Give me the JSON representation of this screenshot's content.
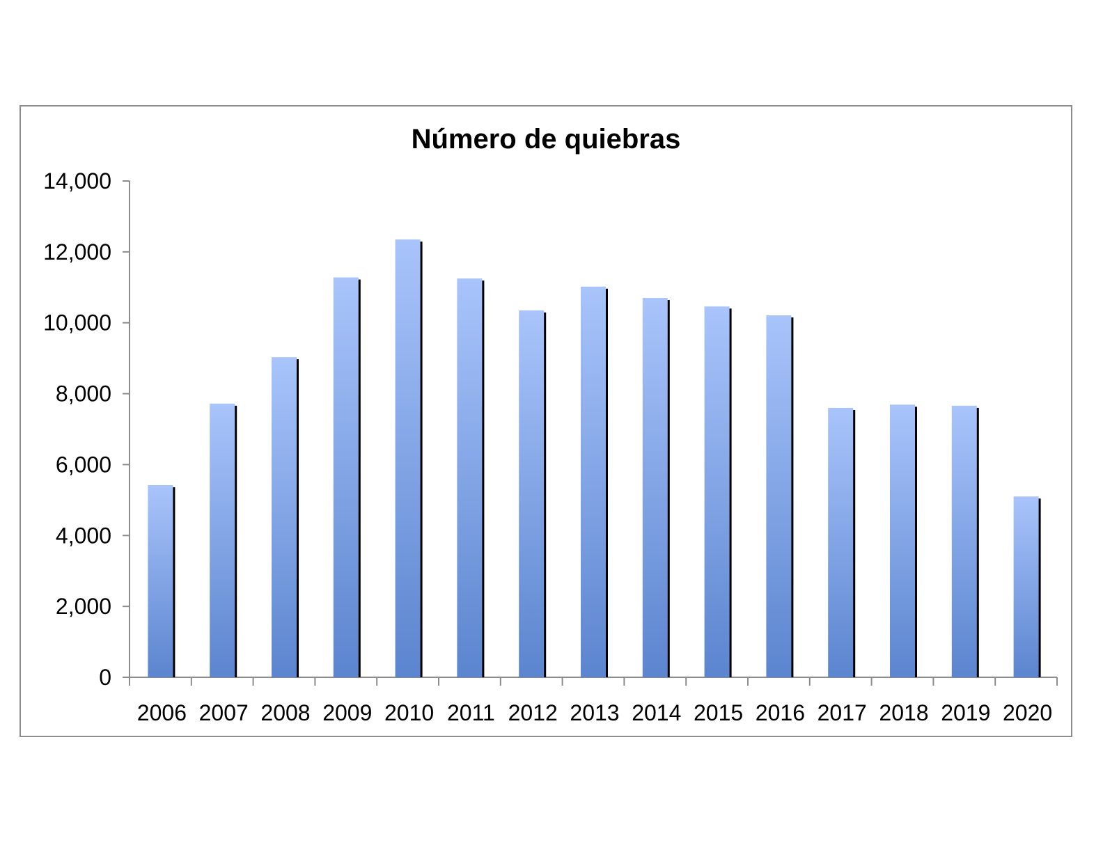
{
  "chart_data": {
    "type": "bar",
    "title": "Número de quiebras",
    "xlabel": "",
    "ylabel": "",
    "categories": [
      "2006",
      "2007",
      "2008",
      "2009",
      "2010",
      "2011",
      "2012",
      "2013",
      "2014",
      "2015",
      "2016",
      "2017",
      "2018",
      "2019",
      "2020"
    ],
    "values": [
      5420,
      7720,
      9030,
      11280,
      12350,
      11250,
      10350,
      11020,
      10700,
      10460,
      10210,
      7600,
      7690,
      7660,
      5100
    ],
    "ylim": [
      0,
      14000
    ],
    "yticks": [
      0,
      2000,
      4000,
      6000,
      8000,
      10000,
      12000,
      14000
    ],
    "ytick_labels": [
      "0",
      "2,000",
      "4,000",
      "6,000",
      "8,000",
      "10,000",
      "12,000",
      "14,000"
    ],
    "grid": false,
    "legend": "none",
    "colors": {
      "bar_top": "#a9c4fb",
      "bar_bottom": "#5b85cf",
      "bar_shadow": "#000000",
      "axis": "#8c8c8c",
      "frame": "#8c8c8c"
    }
  }
}
